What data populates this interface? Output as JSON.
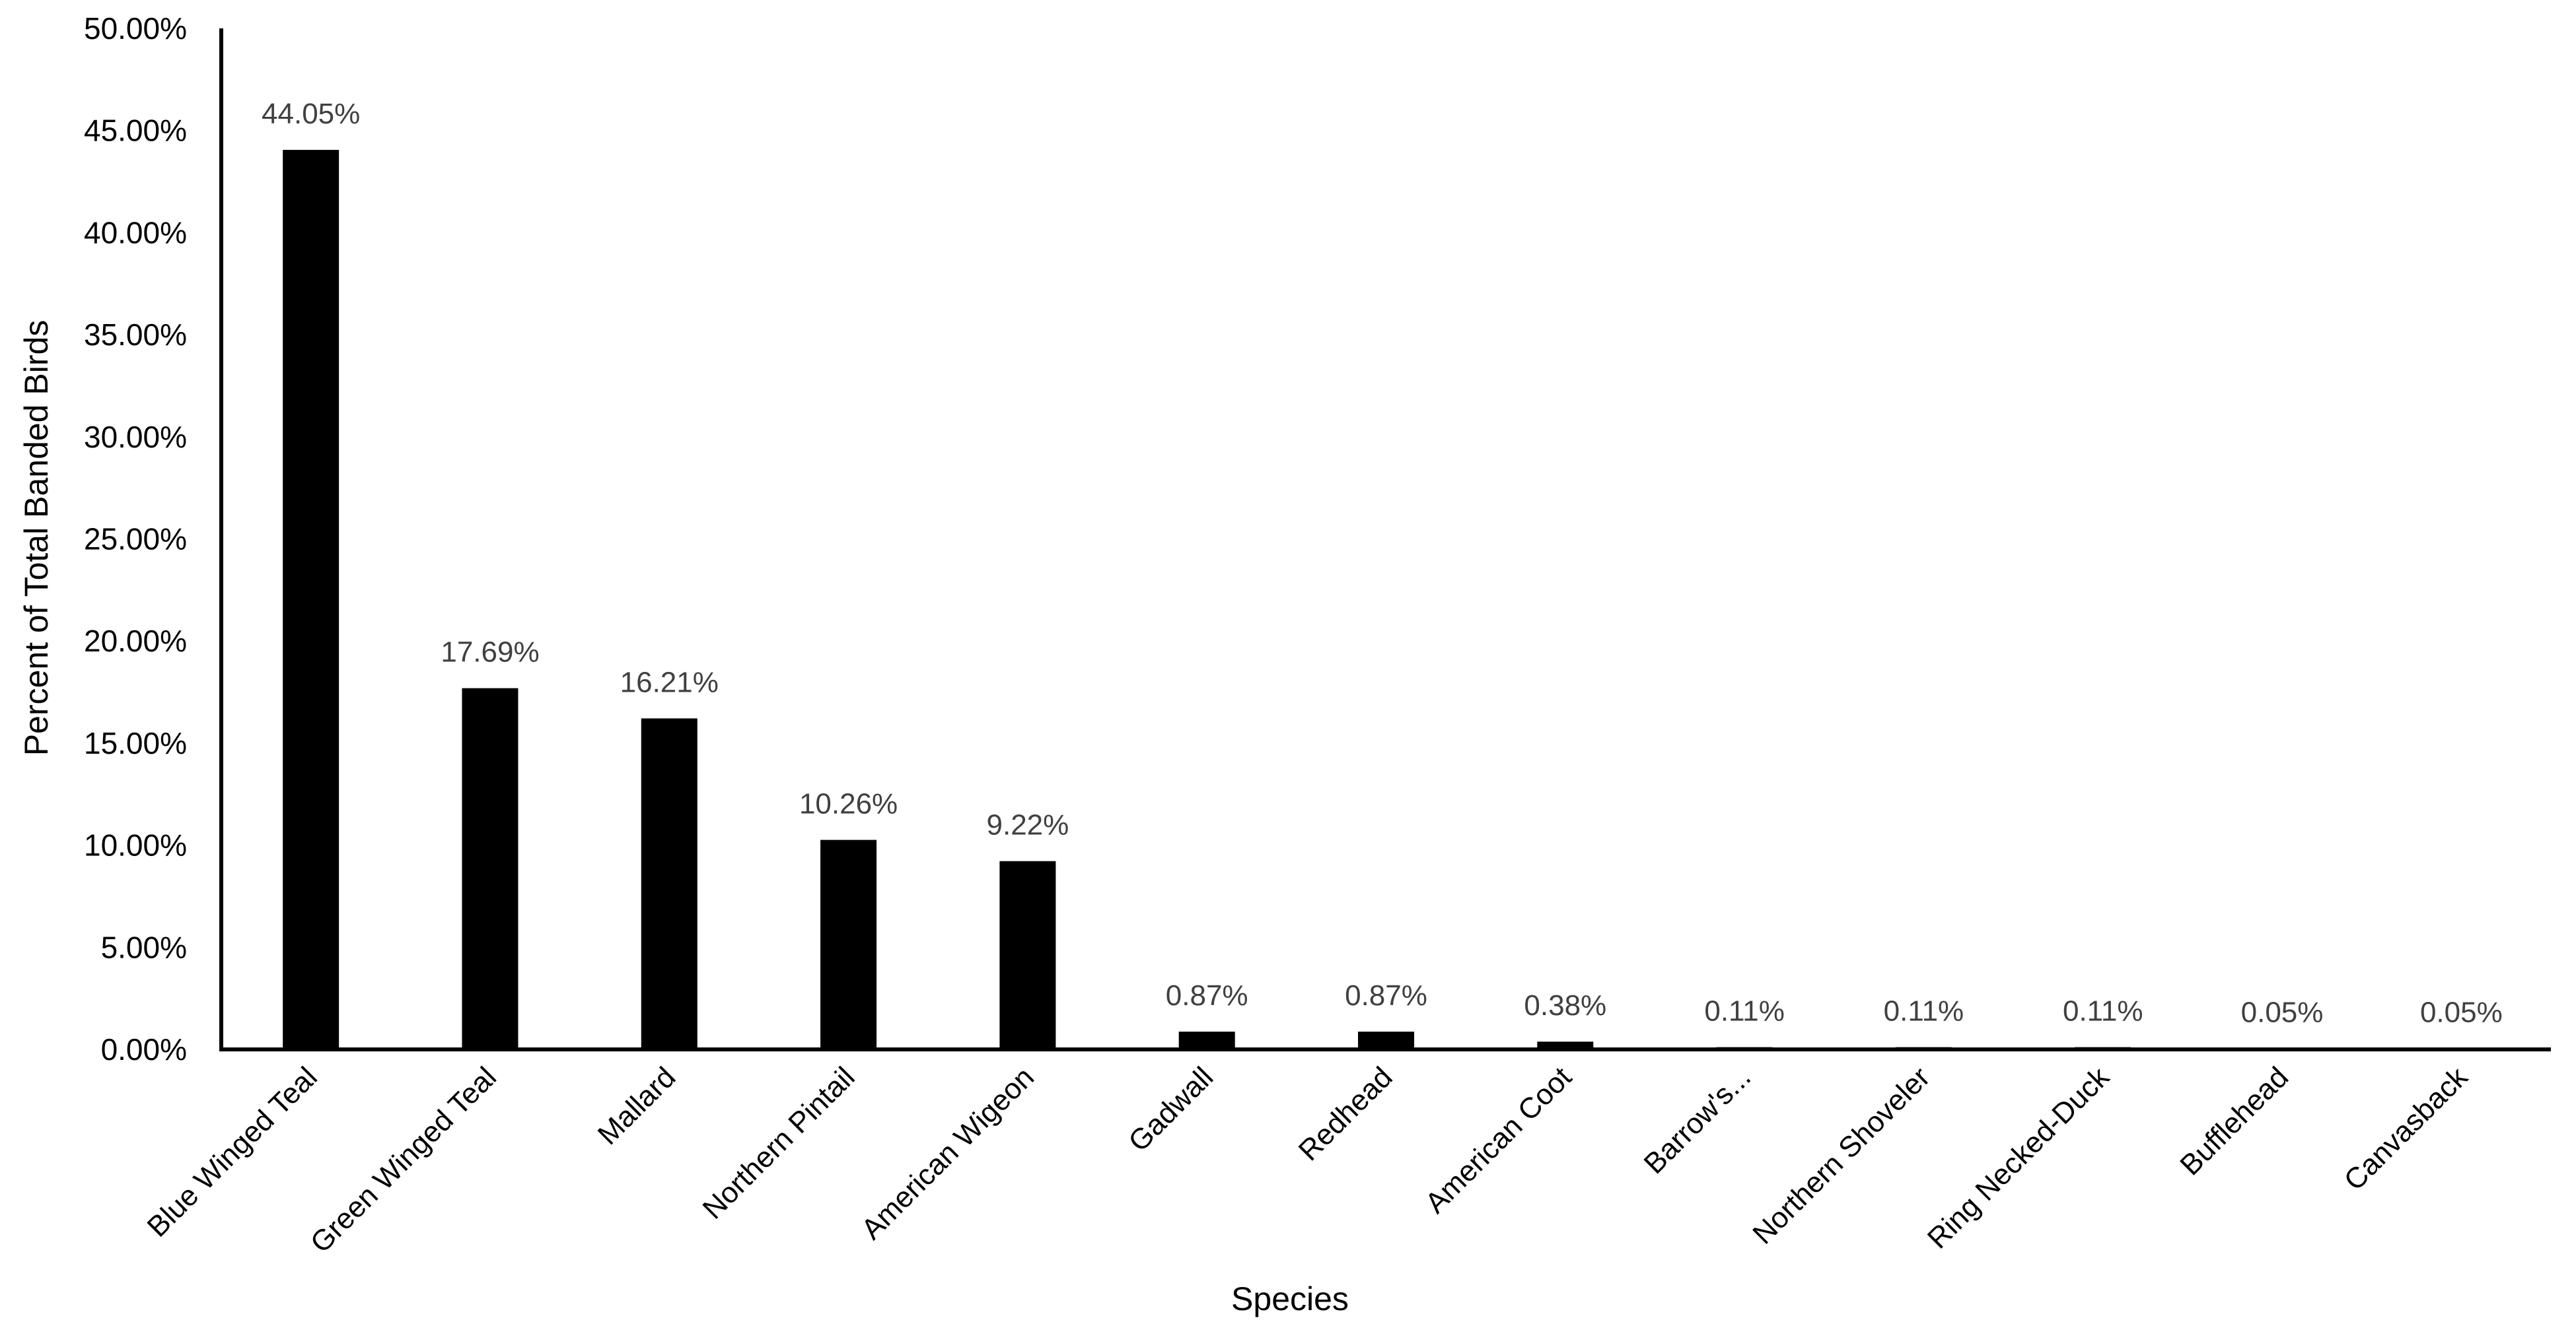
{
  "chart_data": {
    "type": "bar",
    "title": "",
    "xlabel": "Species",
    "ylabel": "Percent of Total Banded Birds",
    "ylim": [
      0,
      50
    ],
    "yticks": [
      "0.00%",
      "5.00%",
      "10.00%",
      "15.00%",
      "20.00%",
      "25.00%",
      "30.00%",
      "35.00%",
      "40.00%",
      "45.00%",
      "50.00%"
    ],
    "grid": false,
    "legend": "none",
    "bar_color": "#000000",
    "categories": [
      "Blue Winged Teal",
      "Green Winged Teal",
      "Mallard",
      "Northern Pintail",
      "American Wigeon",
      "Gadwall",
      "Redhead",
      "American Coot",
      "Barrow's...",
      "Northern Shoveler",
      "Ring Necked-Duck",
      "Bufflehead",
      "Canvasback"
    ],
    "values": [
      44.05,
      17.69,
      16.21,
      10.26,
      9.22,
      0.87,
      0.87,
      0.38,
      0.11,
      0.11,
      0.11,
      0.05,
      0.05
    ],
    "data_labels": [
      "44.05%",
      "17.69%",
      "16.21%",
      "10.26%",
      "9.22%",
      "0.87%",
      "0.87%",
      "0.38%",
      "0.11%",
      "0.11%",
      "0.11%",
      "0.05%",
      "0.05%"
    ]
  }
}
